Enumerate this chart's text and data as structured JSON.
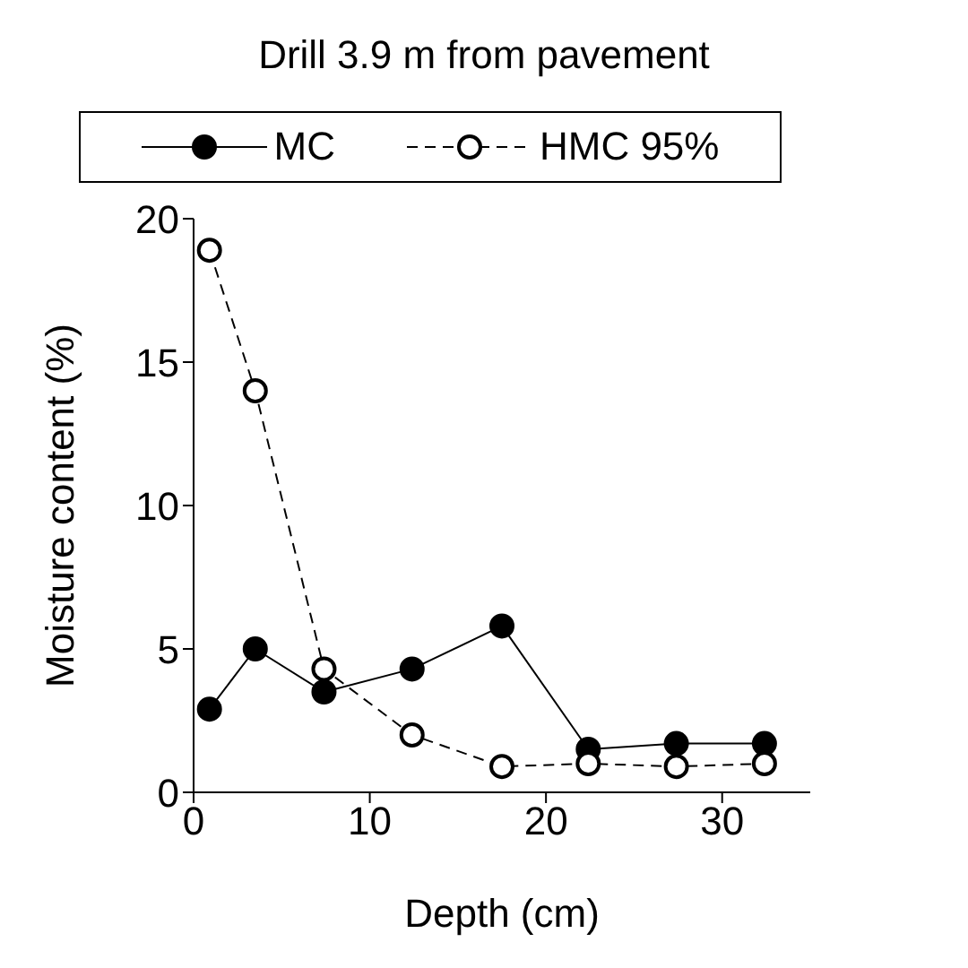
{
  "chart_data": {
    "type": "line",
    "title": "Drill 3.9 m from pavement",
    "xlabel": "Depth (cm)",
    "ylabel": "Moisture content (%)",
    "xlim": [
      0,
      35
    ],
    "xticks": [
      0,
      10,
      20,
      30
    ],
    "ylim": [
      0,
      20
    ],
    "yticks": [
      0,
      5,
      10,
      15,
      20
    ],
    "x": [
      0.9,
      3.5,
      7.4,
      12.4,
      17.5,
      22.4,
      27.4,
      32.4
    ],
    "series": [
      {
        "name": "MC",
        "color": "#000000",
        "line_style": "solid",
        "values": [
          2.9,
          5.0,
          3.5,
          4.3,
          5.8,
          1.5,
          1.7,
          1.7
        ]
      },
      {
        "name": "HMC 95%",
        "color": "#000000",
        "line_style": "dashed",
        "values": [
          18.9,
          14.0,
          4.3,
          2.0,
          0.9,
          1.0,
          0.9,
          1.0
        ]
      }
    ],
    "marker": "circle",
    "grid": false,
    "legend": "top"
  }
}
